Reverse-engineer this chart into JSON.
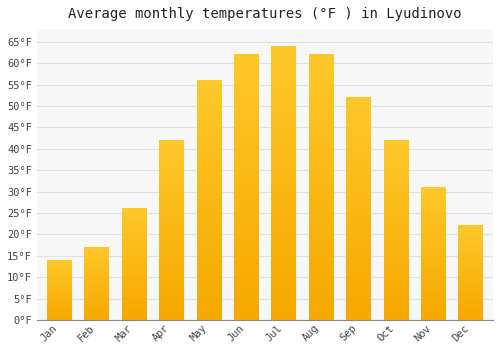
{
  "title": "Average monthly temperatures (°F ) in Lyudinovo",
  "months": [
    "Jan",
    "Feb",
    "Mar",
    "Apr",
    "May",
    "Jun",
    "Jul",
    "Aug",
    "Sep",
    "Oct",
    "Nov",
    "Dec"
  ],
  "values": [
    14,
    17,
    26,
    42,
    56,
    62,
    64,
    62,
    52,
    42,
    31,
    22
  ],
  "bar_color_top": "#FFC82A",
  "bar_color_bottom": "#F5A800",
  "background_color": "#ffffff",
  "plot_bg_color": "#f7f7f7",
  "grid_color": "#e0e0e0",
  "ylim": [
    0,
    68
  ],
  "yticks": [
    0,
    5,
    10,
    15,
    20,
    25,
    30,
    35,
    40,
    45,
    50,
    55,
    60,
    65
  ],
  "title_fontsize": 10,
  "tick_fontsize": 7.5,
  "font_family": "monospace"
}
